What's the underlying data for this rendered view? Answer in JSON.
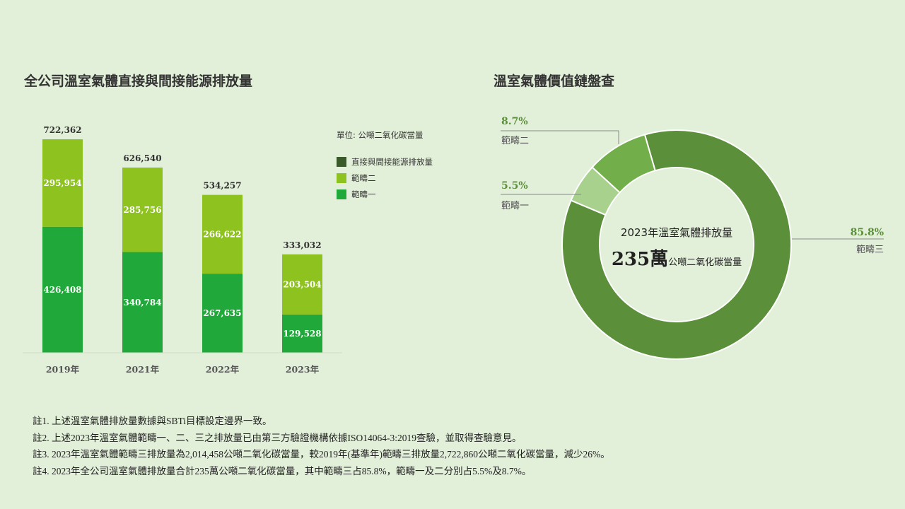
{
  "bar_title": "全公司溫室氣體直接與間接能源排放量",
  "donut_title": "溫室氣體價值鏈盤查",
  "legend": {
    "unit": "單位: 公噸二氧化碳當量",
    "items": [
      "直接與間接能源排放量",
      "範疇二",
      "範疇一"
    ]
  },
  "colors": {
    "total": "#3a5a2a",
    "scope2": "#8dc21f",
    "scope1": "#21a83a",
    "donut_scope3": "#5b8f3a",
    "donut_scope2": "#72ae4a",
    "donut_scope1": "#a8d18d"
  },
  "chart_data": [
    {
      "type": "bar",
      "stacked": true,
      "title": "全公司溫室氣體直接與間接能源排放量",
      "categories": [
        "2019年",
        "2021年",
        "2022年",
        "2023年"
      ],
      "series": [
        {
          "name": "範疇一",
          "values": [
            426408,
            340784,
            267635,
            129528
          ]
        },
        {
          "name": "範疇二",
          "values": [
            295954,
            285756,
            266622,
            203504
          ]
        }
      ],
      "totals": [
        722362,
        626540,
        534257,
        333032
      ],
      "value_labels": {
        "scope1": [
          "426,408",
          "340,784",
          "267,635",
          "129,528"
        ],
        "scope2": [
          "295,954",
          "285,756",
          "266,622",
          "203,504"
        ],
        "totals": [
          "722,362",
          "626,540",
          "534,257",
          "333,032"
        ]
      },
      "ylim": [
        0,
        722362
      ],
      "grid": false
    },
    {
      "type": "pie",
      "donut": true,
      "title": "溫室氣體價值鏈盤查",
      "slices": [
        {
          "name": "範疇三",
          "value": 85.8,
          "label": "85.8%"
        },
        {
          "name": "範疇一",
          "value": 5.5,
          "label": "5.5%"
        },
        {
          "name": "範疇二",
          "value": 8.7,
          "label": "8.7%"
        }
      ],
      "center": {
        "line1": "2023年溫室氣體排放量",
        "big": "235萬",
        "unit": "公噸二氧化碳當量"
      }
    }
  ],
  "notes": [
    "註1. 上述溫室氣體排放量數據與SBTi目標設定邊界一致。",
    "註2. 上述2023年溫室氣體範疇一、二、三之排放量已由第三方驗證機構依據ISO14064-3:2019查驗，並取得查驗意見。",
    "註3. 2023年溫室氣體範疇三排放量為2,014,458公噸二氧化碳當量，較2019年(基準年)範疇三排放量2,722,860公噸二氧化碳當量，減少26%。",
    "註4. 2023年全公司溫室氣體排放量合計235萬公噸二氧化碳當量，其中範疇三占85.8%，範疇一及二分別占5.5%及8.7%。"
  ]
}
